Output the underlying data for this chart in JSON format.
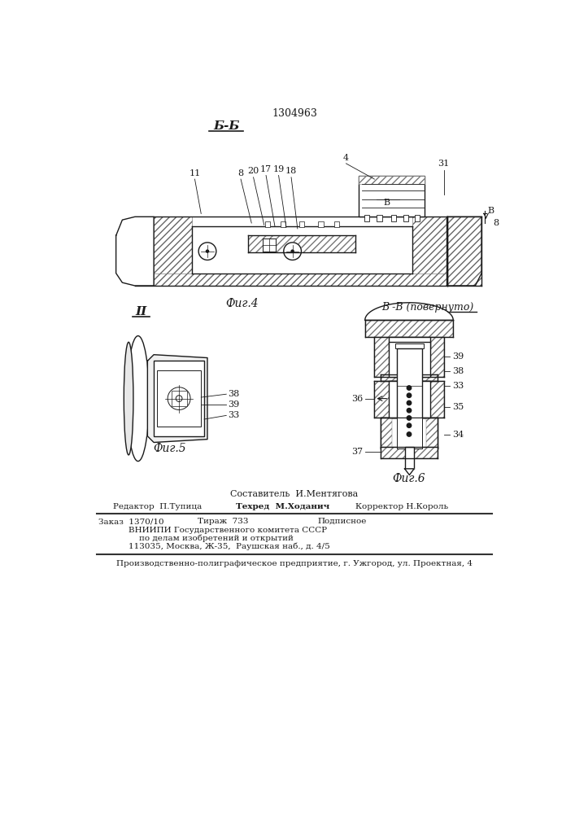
{
  "patent_number": "1304963",
  "bg_color": "#ffffff",
  "lc": "#1a1a1a",
  "fig4_label": "Б-Б",
  "fig4_caption": "Фиг.4",
  "fig5_caption": "Фиг.5",
  "fig6_label": "В -В (повернуто)",
  "fig6_caption": "Фиг.6",
  "fig5_label": "II",
  "footer_sestavitel": "Составитель  И.Ментягова",
  "footer_redaktor": "Редактор  П.Тупица",
  "footer_tehred": "Техред  М.Ходанич",
  "footer_korrektor": "Корректор Н.Король",
  "footer_zakaz": "Заказ  1370/10",
  "footer_tirazh": "Тираж  733",
  "footer_podpisnoe": "Подписное",
  "footer_vniiipi1": "ВНИИПИ Государственного комитета СССР",
  "footer_vniiipi2": "    по делам изобретений и открытий",
  "footer_vniiipi3": "113035, Москва, Ж-35,  Раушская наб., д. 4/5",
  "footer_tipografiya": "Производственно-полиграфическое предприятие, г. Ужгород, ул. Проектная, 4"
}
